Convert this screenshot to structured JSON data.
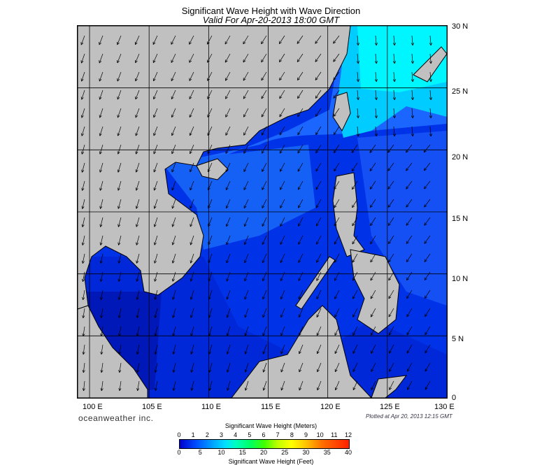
{
  "title": "Significant Wave Height with Wave Direction",
  "subtitle": "Valid For Apr-20-2013 18:00 GMT",
  "lat_labels": [
    "30 N",
    "25 N",
    "20 N",
    "15 N",
    "10 N",
    "5 N",
    "0"
  ],
  "lon_labels": [
    "100 E",
    "105 E",
    "110 E",
    "115 E",
    "120 E",
    "125 E",
    "130 E"
  ],
  "brand": "oceanweather inc.",
  "plot_note": "Plotted at Apr 20, 2013 12:15 GMT",
  "colorbar": {
    "title_meters": "Significant Wave Height (Meters)",
    "title_feet": "Significant Wave Height (Feet)",
    "meters_ticks": [
      "0",
      "1",
      "2",
      "3",
      "4",
      "5",
      "6",
      "7",
      "8",
      "9",
      "10",
      "11",
      "12"
    ],
    "feet_ticks": [
      "0",
      "5",
      "10",
      "15",
      "20",
      "25",
      "30",
      "35",
      "40"
    ]
  },
  "map": {
    "lon_range": [
      99,
      130
    ],
    "lat_range": [
      0,
      30
    ],
    "land_color": "#c0c0c0",
    "arrow_color": "#000000",
    "wave_field": [
      {
        "region": "Taiwan Strait / East of Taiwan",
        "height_m": 3.0,
        "color": "#00f0ff"
      },
      {
        "region": "Northern South China Sea",
        "height_m": 1.5,
        "color": "#1e78ff"
      },
      {
        "region": "Central South China Sea",
        "height_m": 1.0,
        "color": "#0055ff"
      },
      {
        "region": "Southern South China Sea",
        "height_m": 0.5,
        "color": "#0026e0"
      },
      {
        "region": "Gulf of Thailand",
        "height_m": 0.3,
        "color": "#0018c8"
      }
    ]
  }
}
